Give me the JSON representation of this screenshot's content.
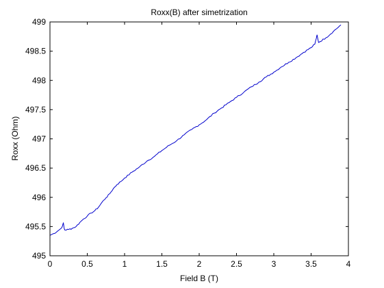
{
  "chart_data": {
    "type": "line",
    "title": "Roxx(B) after simetrization",
    "xlabel": "Field B (T)",
    "ylabel": "Roxx (Ohm)",
    "xlim": [
      0,
      4
    ],
    "ylim": [
      495,
      499
    ],
    "xticks": [
      "0",
      "0.5",
      "1",
      "1.5",
      "2",
      "2.5",
      "3",
      "3.5",
      "4"
    ],
    "yticks": [
      "495",
      "495.5",
      "496",
      "496.5",
      "497",
      "497.5",
      "498",
      "498.5",
      "499"
    ],
    "grid": false,
    "legend": "none",
    "line_color": "#0000cc",
    "series": [
      {
        "x": [
          0.0,
          0.05,
          0.1,
          0.15,
          0.17,
          0.18,
          0.19,
          0.2,
          0.25,
          0.3,
          0.35,
          0.4,
          0.45,
          0.5,
          0.55,
          0.6,
          0.65,
          0.7,
          0.75,
          0.8,
          0.85,
          0.9,
          0.95,
          1.0,
          1.1,
          1.2,
          1.3,
          1.4,
          1.5,
          1.6,
          1.7,
          1.8,
          1.9,
          2.0,
          2.1,
          2.2,
          2.3,
          2.4,
          2.5,
          2.6,
          2.7,
          2.8,
          2.9,
          3.0,
          3.1,
          3.2,
          3.3,
          3.4,
          3.5,
          3.55,
          3.57,
          3.58,
          3.6,
          3.7,
          3.8,
          3.9
        ],
        "y": [
          495.35,
          495.38,
          495.42,
          495.47,
          495.52,
          495.56,
          495.47,
          495.44,
          495.45,
          495.47,
          495.5,
          495.57,
          495.63,
          495.68,
          495.73,
          495.77,
          495.83,
          495.92,
          495.99,
          496.06,
          496.15,
          496.22,
          496.27,
          496.33,
          496.43,
          496.52,
          496.62,
          496.7,
          496.8,
          496.89,
          496.97,
          497.07,
          497.16,
          497.24,
          497.33,
          497.44,
          497.53,
          497.62,
          497.71,
          497.8,
          497.89,
          497.97,
          498.06,
          498.14,
          498.23,
          498.31,
          498.39,
          498.48,
          498.56,
          498.62,
          498.72,
          498.78,
          498.65,
          498.73,
          498.84,
          498.95
        ]
      }
    ]
  }
}
